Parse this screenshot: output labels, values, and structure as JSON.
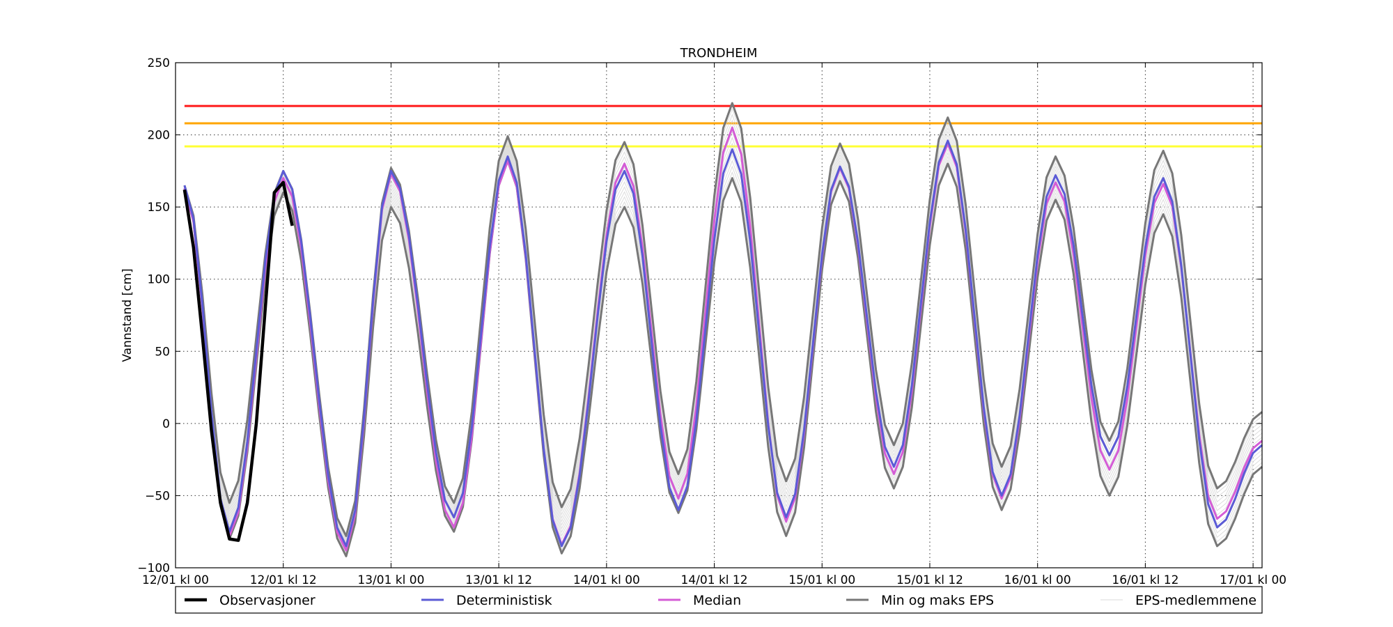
{
  "chart_data": {
    "type": "line",
    "title": "TRONDHEIM",
    "xlabel": "",
    "ylabel": "Vannstand [cm]",
    "ylim": [
      -100,
      250
    ],
    "xlim": [
      0,
      121
    ],
    "x_unit": "hours since 12/01 kl 00",
    "yticks": [
      {
        "value": -100,
        "label": "−100"
      },
      {
        "value": -50,
        "label": "−50"
      },
      {
        "value": 0,
        "label": "0"
      },
      {
        "value": 50,
        "label": "50"
      },
      {
        "value": 100,
        "label": "100"
      },
      {
        "value": 150,
        "label": "150"
      },
      {
        "value": 200,
        "label": "200"
      },
      {
        "value": 250,
        "label": "250"
      }
    ],
    "xticks": [
      {
        "value": 0,
        "label": "12/01 kl 00"
      },
      {
        "value": 12,
        "label": "12/01 kl 12"
      },
      {
        "value": 24,
        "label": "13/01 kl 00"
      },
      {
        "value": 36,
        "label": "13/01 kl 12"
      },
      {
        "value": 48,
        "label": "14/01 kl 00"
      },
      {
        "value": 60,
        "label": "14/01 kl 12"
      },
      {
        "value": 72,
        "label": "15/01 kl 00"
      },
      {
        "value": 84,
        "label": "15/01 kl 12"
      },
      {
        "value": 96,
        "label": "16/01 kl 00"
      },
      {
        "value": 108,
        "label": "16/01 kl 12"
      },
      {
        "value": 120,
        "label": "17/01 kl 00"
      }
    ],
    "grid": true,
    "legend_position": "bottom",
    "thresholds": [
      {
        "value": 220,
        "color": "#ff1a1a"
      },
      {
        "value": 208,
        "color": "#ffa500"
      },
      {
        "value": 192,
        "color": "#ffff33"
      }
    ],
    "deterministic_extrema": [
      [
        1,
        165
      ],
      [
        6,
        -75
      ],
      [
        12,
        175
      ],
      [
        19,
        -85
      ],
      [
        24,
        175
      ],
      [
        31,
        -65
      ],
      [
        37,
        185
      ],
      [
        43,
        -85
      ],
      [
        50,
        175
      ],
      [
        56,
        -60
      ],
      [
        62,
        190
      ],
      [
        68,
        -65
      ],
      [
        74,
        178
      ],
      [
        80,
        -30
      ],
      [
        86,
        196
      ],
      [
        92,
        -50
      ],
      [
        98,
        172
      ],
      [
        104,
        -22
      ],
      [
        110,
        170
      ],
      [
        116,
        -72
      ],
      [
        121,
        -15
      ]
    ],
    "median_extrema": [
      [
        1,
        163
      ],
      [
        6,
        -78
      ],
      [
        12,
        170
      ],
      [
        19,
        -88
      ],
      [
        24,
        173
      ],
      [
        31,
        -72
      ],
      [
        37,
        182
      ],
      [
        43,
        -84
      ],
      [
        50,
        180
      ],
      [
        56,
        -52
      ],
      [
        62,
        205
      ],
      [
        68,
        -68
      ],
      [
        74,
        177
      ],
      [
        80,
        -35
      ],
      [
        86,
        194
      ],
      [
        92,
        -52
      ],
      [
        98,
        167
      ],
      [
        104,
        -32
      ],
      [
        110,
        166
      ],
      [
        116,
        -66
      ],
      [
        121,
        -12
      ]
    ],
    "min_eps_extrema": [
      [
        1,
        163
      ],
      [
        6,
        -80
      ],
      [
        12,
        160
      ],
      [
        19,
        -92
      ],
      [
        24,
        150
      ],
      [
        31,
        -75
      ],
      [
        37,
        182
      ],
      [
        43,
        -90
      ],
      [
        50,
        150
      ],
      [
        56,
        -62
      ],
      [
        62,
        170
      ],
      [
        68,
        -78
      ],
      [
        74,
        168
      ],
      [
        80,
        -45
      ],
      [
        86,
        180
      ],
      [
        92,
        -60
      ],
      [
        98,
        155
      ],
      [
        104,
        -50
      ],
      [
        110,
        145
      ],
      [
        116,
        -85
      ],
      [
        121,
        -30
      ]
    ],
    "max_eps_extrema": [
      [
        1,
        165
      ],
      [
        6,
        -55
      ],
      [
        12,
        175
      ],
      [
        19,
        -78
      ],
      [
        24,
        177
      ],
      [
        31,
        -55
      ],
      [
        37,
        199
      ],
      [
        43,
        -58
      ],
      [
        50,
        195
      ],
      [
        56,
        -35
      ],
      [
        62,
        222
      ],
      [
        68,
        -40
      ],
      [
        74,
        194
      ],
      [
        80,
        -15
      ],
      [
        86,
        212
      ],
      [
        92,
        -30
      ],
      [
        98,
        185
      ],
      [
        104,
        -12
      ],
      [
        110,
        189
      ],
      [
        116,
        -45
      ],
      [
        121,
        8
      ]
    ],
    "observations": {
      "x": [
        1,
        2,
        3,
        4,
        5,
        6,
        7,
        8,
        9,
        10,
        11,
        12,
        13
      ],
      "y": [
        162,
        122,
        60,
        -5,
        -55,
        -80,
        -81,
        -55,
        0,
        80,
        160,
        167,
        137
      ]
    },
    "series": [
      {
        "name": "Observasjoner",
        "color": "#000000",
        "width": 3
      },
      {
        "name": "Deterministisk",
        "color": "#5b5bd6",
        "width": 2
      },
      {
        "name": "Median",
        "color": "#d45cd6",
        "width": 2
      },
      {
        "name": "Min og maks EPS",
        "color": "#777777",
        "width": 2
      },
      {
        "name": "EPS-medlemmene",
        "color": "#d9d9d9",
        "width": 1
      }
    ]
  }
}
